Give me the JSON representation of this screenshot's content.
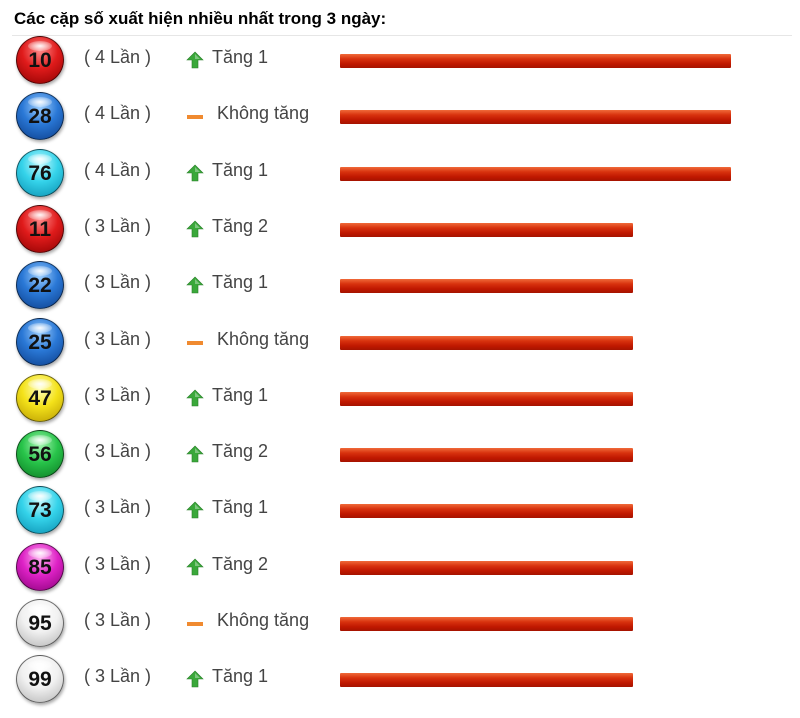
{
  "title": "Các cặp số xuất hiện nhiều nhất trong 3 ngày:",
  "max_count": 4,
  "rows": [
    {
      "number": "10",
      "count_label": "( 4 Lần )",
      "count": 4,
      "trend": "up",
      "trend_label": "Tăng 1",
      "ball_color": "red"
    },
    {
      "number": "28",
      "count_label": "( 4 Lần )",
      "count": 4,
      "trend": "flat",
      "trend_label": "Không tăng",
      "ball_color": "blue"
    },
    {
      "number": "76",
      "count_label": "( 4 Lần )",
      "count": 4,
      "trend": "up",
      "trend_label": "Tăng 1",
      "ball_color": "cyan"
    },
    {
      "number": "11",
      "count_label": "( 3 Lần )",
      "count": 3,
      "trend": "up",
      "trend_label": "Tăng 2",
      "ball_color": "red"
    },
    {
      "number": "22",
      "count_label": "( 3 Lần )",
      "count": 3,
      "trend": "up",
      "trend_label": "Tăng 1",
      "ball_color": "blue"
    },
    {
      "number": "25",
      "count_label": "( 3 Lần )",
      "count": 3,
      "trend": "flat",
      "trend_label": "Không tăng",
      "ball_color": "blue"
    },
    {
      "number": "47",
      "count_label": "( 3 Lần )",
      "count": 3,
      "trend": "up",
      "trend_label": "Tăng 1",
      "ball_color": "yellow"
    },
    {
      "number": "56",
      "count_label": "( 3 Lần )",
      "count": 3,
      "trend": "up",
      "trend_label": "Tăng 2",
      "ball_color": "green"
    },
    {
      "number": "73",
      "count_label": "( 3 Lần )",
      "count": 3,
      "trend": "up",
      "trend_label": "Tăng 1",
      "ball_color": "cyan"
    },
    {
      "number": "85",
      "count_label": "( 3 Lần )",
      "count": 3,
      "trend": "up",
      "trend_label": "Tăng 2",
      "ball_color": "magenta"
    },
    {
      "number": "95",
      "count_label": "( 3 Lần )",
      "count": 3,
      "trend": "flat",
      "trend_label": "Không tăng",
      "ball_color": "white"
    },
    {
      "number": "99",
      "count_label": "( 3 Lần )",
      "count": 3,
      "trend": "up",
      "trend_label": "Tăng 1",
      "ball_color": "white"
    }
  ],
  "colors": {
    "bar": "#c8200a",
    "up_arrow": "#3aa83a",
    "flat_dash": "#f08a30"
  },
  "icons": {
    "up": "arrow-up-icon",
    "flat": "dash-icon"
  }
}
